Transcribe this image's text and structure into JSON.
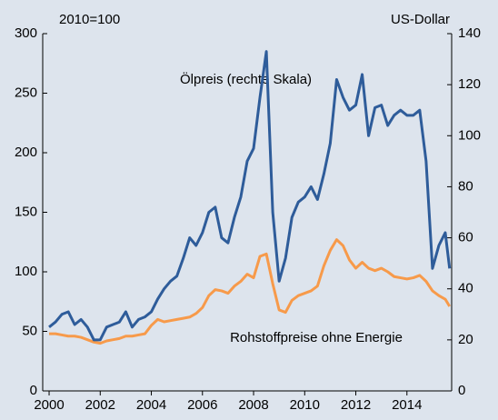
{
  "chart_data": {
    "type": "line",
    "left_unit": "2010=100",
    "right_unit": "US-Dollar",
    "x": [
      2000,
      2000.25,
      2000.5,
      2000.75,
      2001,
      2001.25,
      2001.5,
      2001.75,
      2002,
      2002.25,
      2002.5,
      2002.75,
      2003,
      2003.25,
      2003.5,
      2003.75,
      2004,
      2004.25,
      2004.5,
      2004.75,
      2005,
      2005.25,
      2005.5,
      2005.75,
      2006,
      2006.25,
      2006.5,
      2006.75,
      2007,
      2007.25,
      2007.5,
      2007.75,
      2008,
      2008.25,
      2008.5,
      2008.75,
      2009,
      2009.25,
      2009.5,
      2009.75,
      2010,
      2010.25,
      2010.5,
      2010.75,
      2011,
      2011.25,
      2011.5,
      2011.75,
      2012,
      2012.25,
      2012.5,
      2012.75,
      2013,
      2013.25,
      2013.5,
      2013.75,
      2014,
      2014.25,
      2014.5,
      2014.75,
      2015,
      2015.25,
      2015.5,
      2015.67
    ],
    "series": [
      {
        "name": "Ölpreis (rechte Skala)",
        "color": "#2e5c9a",
        "axis": "y2",
        "values": [
          25,
          27,
          30,
          31,
          26,
          28,
          25,
          20,
          20,
          25,
          26,
          27,
          31,
          25,
          28,
          29,
          31,
          36,
          40,
          43,
          45,
          52,
          60,
          57,
          62,
          70,
          72,
          60,
          58,
          68,
          76,
          90,
          95,
          115,
          133,
          70,
          43,
          52,
          68,
          74,
          76,
          80,
          75,
          85,
          97,
          122,
          115,
          110,
          112,
          124,
          100,
          111,
          112,
          104,
          108,
          110,
          108,
          108,
          110,
          90,
          48,
          57,
          62,
          48
        ]
      },
      {
        "name": "Rohstoffpreise ohne Energie",
        "color": "#f79a4a",
        "values": [
          48,
          48,
          47,
          46,
          46,
          45,
          43,
          41,
          40,
          42,
          43,
          44,
          46,
          46,
          47,
          48,
          55,
          60,
          58,
          59,
          60,
          61,
          62,
          65,
          70,
          80,
          85,
          84,
          82,
          88,
          92,
          98,
          95,
          113,
          115,
          90,
          68,
          66,
          76,
          80,
          82,
          84,
          88,
          105,
          118,
          127,
          122,
          110,
          103,
          108,
          103,
          101,
          103,
          100,
          96,
          95,
          94,
          95,
          97,
          92,
          84,
          80,
          77,
          71
        ]
      }
    ],
    "xlim": [
      1999.75,
      2015.75
    ],
    "xticks": [
      2000,
      2002,
      2004,
      2006,
      2008,
      2010,
      2012,
      2014
    ],
    "ylim": [
      0,
      300
    ],
    "yticks": [
      0,
      50,
      100,
      150,
      200,
      250,
      300
    ],
    "y2lim": [
      0,
      140
    ],
    "y2ticks": [
      0,
      20,
      40,
      60,
      80,
      100,
      120,
      140
    ]
  }
}
